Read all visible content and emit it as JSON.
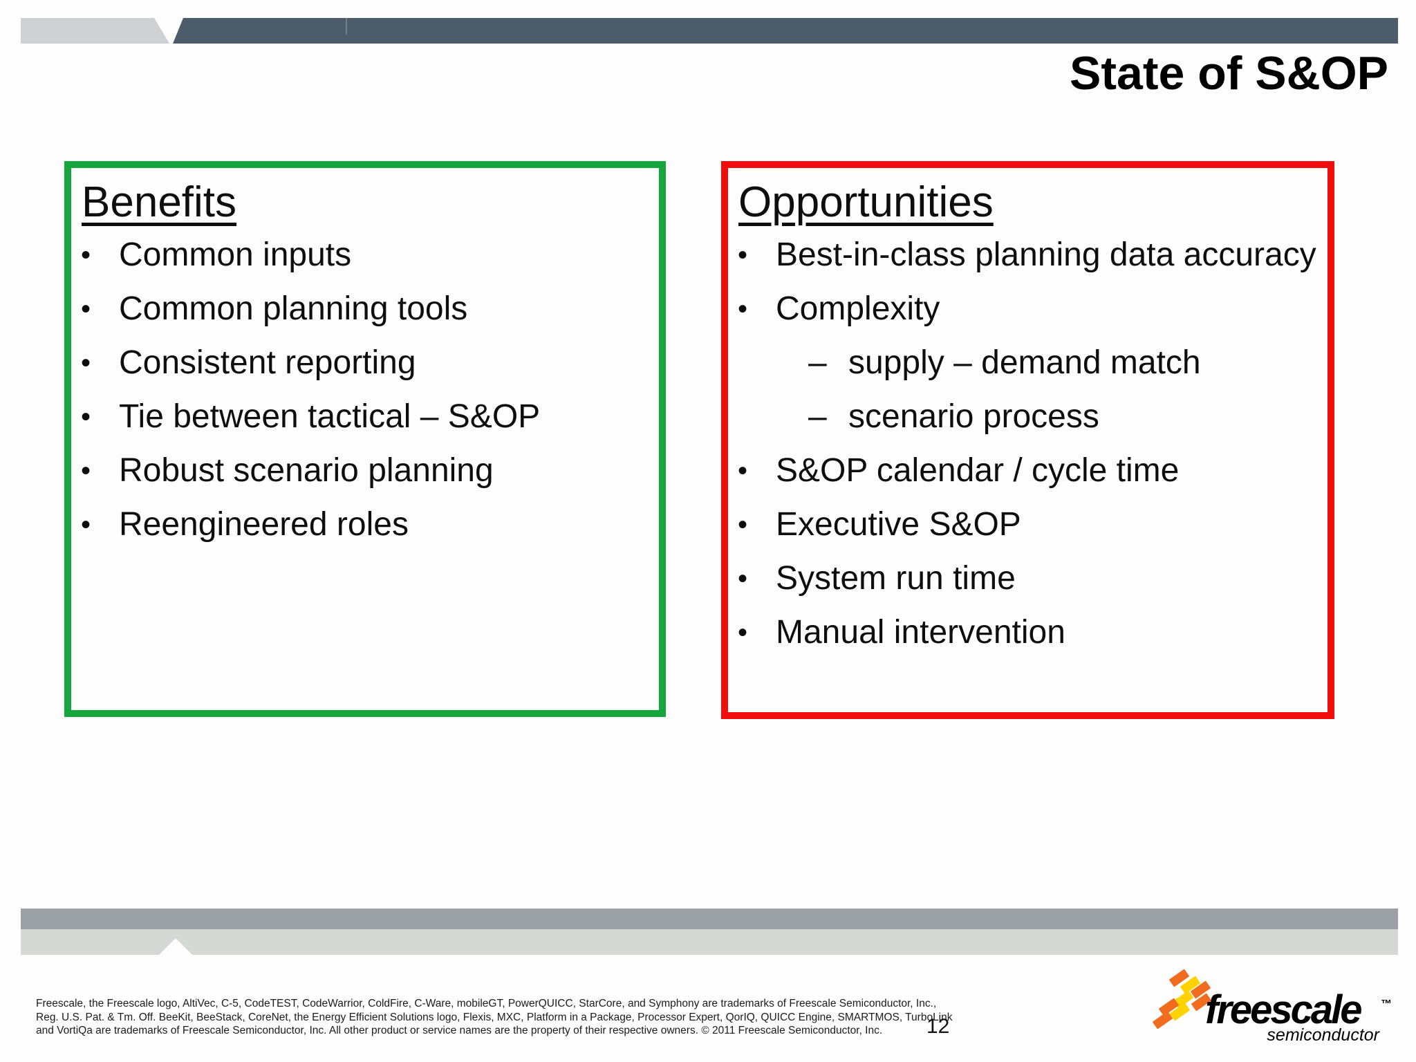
{
  "title": "State of S&OP",
  "glyphs": {
    "bullet": "•",
    "dash": "–"
  },
  "benefits": {
    "heading": "Benefits",
    "border_color": "#17a53e",
    "items": [
      "Common inputs",
      "Common planning tools",
      "Consistent reporting",
      "Tie between tactical – S&OP",
      "Robust scenario planning",
      "Reengineered roles"
    ]
  },
  "opportunities": {
    "heading": "Opportunities",
    "border_color": "#f20d0d",
    "items": [
      {
        "text": "Best-in-class planning data accuracy",
        "level": 1
      },
      {
        "text": "Complexity",
        "level": 1
      },
      {
        "text": "supply – demand match",
        "level": 2
      },
      {
        "text": "scenario process",
        "level": 2
      },
      {
        "text": "S&OP calendar / cycle time",
        "level": 1
      },
      {
        "text": "Executive S&OP",
        "level": 1
      },
      {
        "text": "System run time",
        "level": 1
      },
      {
        "text": "Manual intervention",
        "level": 1
      }
    ]
  },
  "footer": {
    "trademark_lines": [
      "Freescale, the Freescale logo, AltiVec, C-5, CodeTEST, CodeWarrior, ColdFire, C-Ware, mobileGT, PowerQUICC, StarCore, and Symphony are trademarks of Freescale Semiconductor, Inc.,",
      "Reg. U.S. Pat. & Tm. Off.  BeeKit, BeeStack, CoreNet, the Energy Efficient Solutions logo, Flexis, MXC, Platform in a Package, Processor Expert, QorIQ, QUICC Engine, SMARTMOS, TurboLink",
      "and VortiQa are trademarks of Freescale Semiconductor, Inc. All other product or service names are the property of their respective owners. © 2011 Freescale Semiconductor, Inc."
    ],
    "page_number": "12",
    "logo": {
      "brand": "freescale",
      "tm": "™",
      "tagline": "semiconductor"
    }
  },
  "colors": {
    "top_bar_dark": "#4d5c6b",
    "top_bar_light": "#cdd1d3",
    "bottom_bar_medium": "#9ba1a7",
    "bottom_bar_light": "#d4d9d6",
    "logo_orange": "#f26c1f",
    "logo_yellow": "#ffd200",
    "text": "#0e0e0e"
  }
}
